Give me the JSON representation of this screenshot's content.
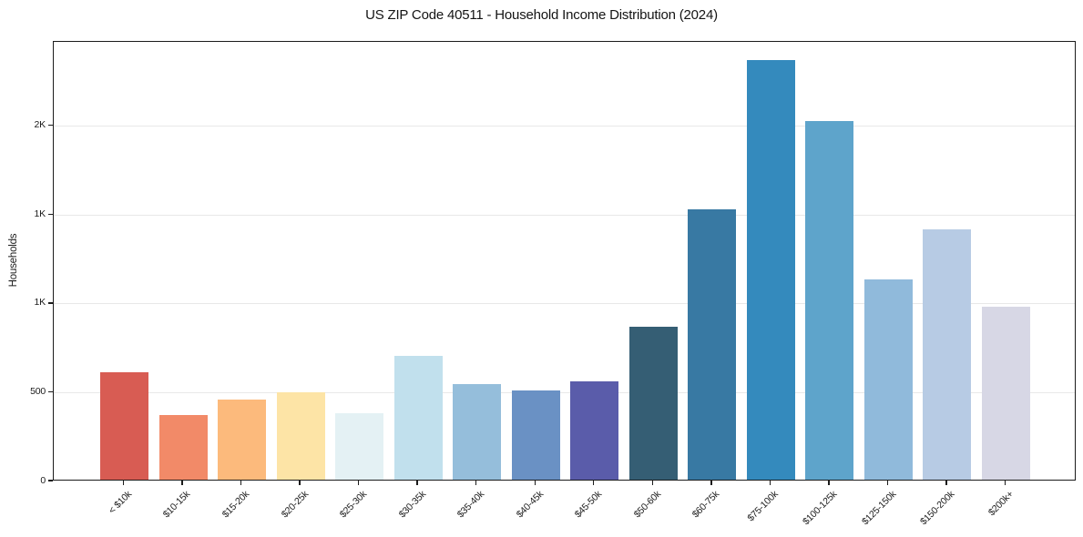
{
  "figure": {
    "title": "US ZIP Code 40511 - Household Income Distribution (2024)",
    "ylabel": "Households"
  },
  "chart_data": {
    "type": "bar",
    "title": "US ZIP Code 40511 - Household Income Distribution (2024)",
    "xlabel": "",
    "ylabel": "Households",
    "categories": [
      "< $10k",
      "$10-15k",
      "$15-20k",
      "$20-25k",
      "$25-30k",
      "$30-35k",
      "$35-40k",
      "$40-45k",
      "$45-50k",
      "$50-60k",
      "$60-75k",
      "$75-100k",
      "$100-125k",
      "$125-150k",
      "$150-200k",
      "$200k+"
    ],
    "values": [
      605,
      365,
      450,
      490,
      375,
      695,
      540,
      500,
      555,
      860,
      1520,
      2360,
      2020,
      1125,
      1410,
      975
    ],
    "bar_colors": [
      "#d85c53",
      "#f28a68",
      "#fcba7c",
      "#fde4a6",
      "#e4f1f4",
      "#c1e0ed",
      "#95bedb",
      "#6a91c4",
      "#5a5caa",
      "#355e74",
      "#3879a3",
      "#348abd",
      "#5ea4cb",
      "#90badb",
      "#b7cbe4",
      "#d7d7e5"
    ],
    "ylim": [
      0,
      2475
    ],
    "yticks": [
      {
        "value": 0,
        "label": "0"
      },
      {
        "value": 500,
        "label": "500"
      },
      {
        "value": 1000,
        "label": "1K"
      },
      {
        "value": 1500,
        "label": "1K"
      },
      {
        "value": 2000,
        "label": "2K"
      }
    ],
    "grid": "horizontal",
    "legend": "none"
  },
  "colors": {
    "background": "#ffffff",
    "spine": "#1b1b1b",
    "gridline": "#e8e8e8",
    "text": "#1b1b1b"
  }
}
